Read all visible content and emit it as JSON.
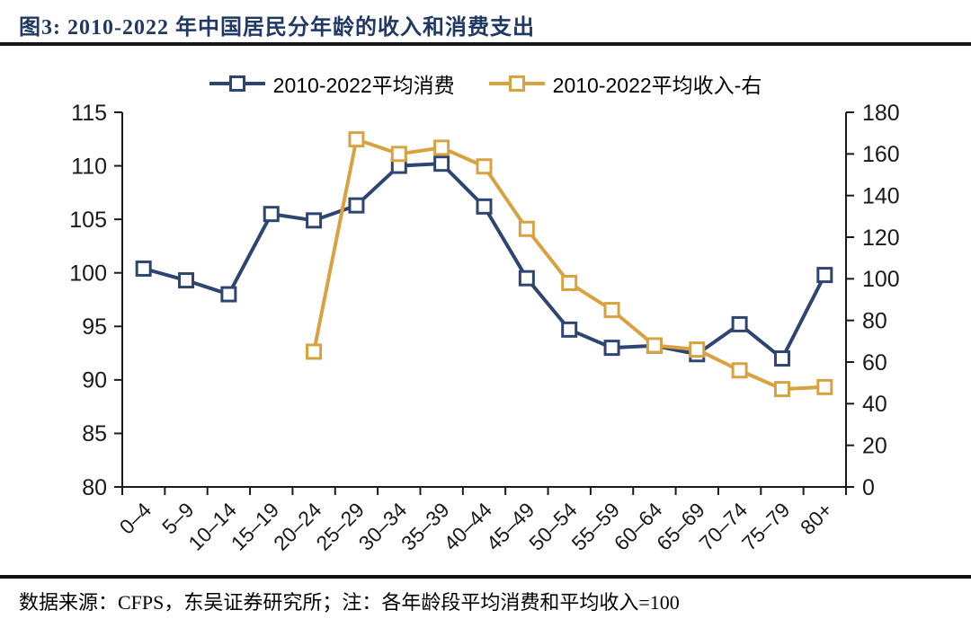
{
  "header": {
    "title": "图3:  2010-2022 年中国居民分年龄的收入和消费支出"
  },
  "legend": {
    "items": [
      {
        "label": "2010-2022平均消费",
        "color": "#2E4571",
        "marker": "open-square-on-line"
      },
      {
        "label": "2010-2022平均收入-右",
        "color": "#D8A240",
        "marker": "open-square-on-line"
      }
    ]
  },
  "chart_data": {
    "type": "line",
    "title": "2010-2022 年中国居民分年龄的收入和消费支出",
    "categories": [
      "0–4",
      "5–9",
      "10–14",
      "15–19",
      "20–24",
      "25–29",
      "30–34",
      "35–39",
      "40–44",
      "45–49",
      "50–54",
      "55–59",
      "60–64",
      "65–69",
      "70–74",
      "75–79",
      "80+"
    ],
    "series": [
      {
        "name": "2010-2022平均消费",
        "axis": "left",
        "color": "#2E4571",
        "values": [
          100.4,
          99.3,
          98.0,
          105.5,
          104.9,
          106.3,
          110.0,
          110.2,
          106.2,
          99.5,
          94.7,
          93.0,
          93.2,
          92.4,
          95.2,
          92.0,
          99.8
        ]
      },
      {
        "name": "2010-2022平均收入-右",
        "axis": "right",
        "color": "#D8A240",
        "values": [
          null,
          null,
          null,
          null,
          65,
          167,
          160,
          163,
          154,
          124,
          98,
          85,
          68,
          66,
          56,
          47,
          48
        ]
      }
    ],
    "left_axis": {
      "min": 80,
      "max": 115,
      "tick_step": 5,
      "ticks": [
        115,
        110,
        105,
        100,
        95,
        90,
        85,
        80
      ]
    },
    "right_axis": {
      "min": 0,
      "max": 180,
      "tick_step": 20,
      "ticks": [
        180,
        160,
        140,
        120,
        100,
        80,
        60,
        40,
        20,
        0
      ]
    },
    "grid": false,
    "legend_position": "top-center",
    "marker": "open-square",
    "line_width": 4
  },
  "footer": {
    "text": "数据来源：CFPS，东吴证券研究所；注：各年龄段平均消费和平均收入=100"
  },
  "colors": {
    "consumption_series": "#2E4571",
    "income_series": "#D8A240",
    "title_text": "#1F3864",
    "axis_and_text": "#1a1a1a",
    "rule": "#15151e",
    "background": "#ffffff"
  }
}
